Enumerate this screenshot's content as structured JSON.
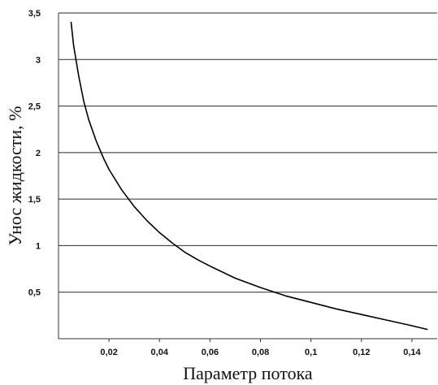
{
  "chart_data": {
    "type": "line",
    "title": "",
    "xlabel": "Параметр потока",
    "ylabel": "Унос жидкости, %",
    "xlim": [
      0,
      0.15
    ],
    "ylim": [
      0,
      3.5
    ],
    "grid": "horizontal",
    "x_ticks": [
      0.02,
      0.04,
      0.06,
      0.08,
      0.1,
      0.12,
      0.14
    ],
    "x_tick_labels": [
      "0,02",
      "0,04",
      "0,06",
      "0,08",
      "0,1",
      "0,12",
      "0,14"
    ],
    "y_ticks": [
      0.5,
      1,
      1.5,
      2,
      2.5,
      3,
      3.5
    ],
    "y_tick_labels": [
      "0,5",
      "1",
      "1,5",
      "2",
      "2,5",
      "3",
      "3,5"
    ],
    "series": [
      {
        "color": "#000000",
        "x": [
          0.005,
          0.006,
          0.008,
          0.01,
          0.012,
          0.015,
          0.018,
          0.02,
          0.025,
          0.03,
          0.035,
          0.04,
          0.045,
          0.05,
          0.055,
          0.06,
          0.07,
          0.08,
          0.09,
          0.1,
          0.11,
          0.12,
          0.13,
          0.14,
          0.146
        ],
        "y": [
          3.4,
          3.15,
          2.82,
          2.55,
          2.35,
          2.12,
          1.93,
          1.82,
          1.6,
          1.42,
          1.27,
          1.14,
          1.03,
          0.93,
          0.85,
          0.78,
          0.65,
          0.55,
          0.46,
          0.39,
          0.32,
          0.26,
          0.2,
          0.14,
          0.1
        ]
      }
    ]
  }
}
